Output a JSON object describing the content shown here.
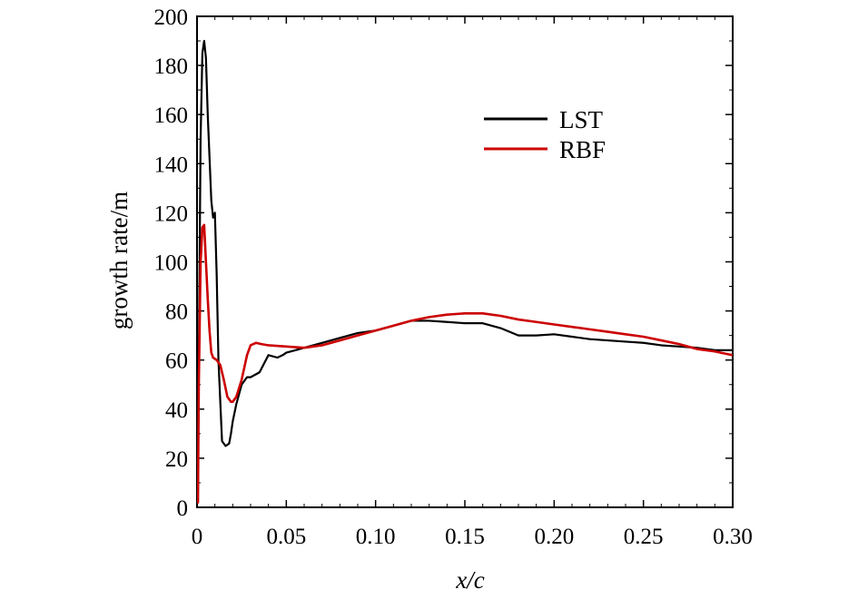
{
  "chart_data": {
    "type": "line",
    "xlabel": "x/c",
    "ylabel": "growth rate/m",
    "xlim": [
      0,
      0.3
    ],
    "ylim": [
      0,
      200
    ],
    "xticks": [
      0,
      0.05,
      0.1,
      0.15,
      0.2,
      0.25,
      0.3
    ],
    "xtick_labels": [
      "0",
      "0.05",
      "0.10",
      "0.15",
      "0.20",
      "0.25",
      "0.30"
    ],
    "yticks": [
      0,
      20,
      40,
      60,
      80,
      100,
      120,
      140,
      160,
      180,
      200
    ],
    "ytick_labels": [
      "0",
      "20",
      "40",
      "60",
      "80",
      "100",
      "120",
      "140",
      "160",
      "180",
      "200"
    ],
    "grid": false,
    "legend_position": "upper-right",
    "series": [
      {
        "name": "LST",
        "color": "#000000",
        "x": [
          0.0005,
          0.001,
          0.002,
          0.003,
          0.004,
          0.005,
          0.006,
          0.008,
          0.009,
          0.01,
          0.011,
          0.012,
          0.014,
          0.016,
          0.018,
          0.019,
          0.02,
          0.022,
          0.025,
          0.028,
          0.03,
          0.035,
          0.04,
          0.045,
          0.048,
          0.05,
          0.055,
          0.06,
          0.07,
          0.08,
          0.09,
          0.1,
          0.11,
          0.12,
          0.13,
          0.14,
          0.15,
          0.16,
          0.17,
          0.18,
          0.19,
          0.2,
          0.21,
          0.22,
          0.23,
          0.24,
          0.25,
          0.26,
          0.27,
          0.28,
          0.29,
          0.3
        ],
        "y": [
          2,
          60,
          150,
          185,
          190,
          183,
          160,
          125,
          118,
          120,
          95,
          60,
          27,
          25,
          26,
          30,
          35,
          42,
          50,
          53,
          53,
          55,
          62,
          61,
          62,
          63,
          64,
          65,
          67,
          69,
          71,
          72,
          74,
          76,
          76,
          75.5,
          75,
          75,
          73,
          70,
          70,
          70.5,
          69.5,
          68.5,
          68,
          67.5,
          67,
          66,
          65.5,
          65,
          64,
          64
        ]
      },
      {
        "name": "RBF",
        "color": "#cc0000",
        "x": [
          0.0005,
          0.001,
          0.002,
          0.003,
          0.004,
          0.005,
          0.006,
          0.007,
          0.008,
          0.009,
          0.011,
          0.013,
          0.015,
          0.017,
          0.019,
          0.02,
          0.022,
          0.025,
          0.028,
          0.03,
          0.033,
          0.036,
          0.04,
          0.05,
          0.06,
          0.07,
          0.08,
          0.09,
          0.1,
          0.11,
          0.12,
          0.13,
          0.14,
          0.15,
          0.16,
          0.17,
          0.18,
          0.19,
          0.2,
          0.21,
          0.22,
          0.23,
          0.24,
          0.25,
          0.26,
          0.27,
          0.28,
          0.29,
          0.3
        ],
        "y": [
          2,
          50,
          100,
          114,
          115,
          100,
          85,
          72,
          63,
          61,
          60,
          58,
          52,
          45,
          43,
          43,
          45,
          52,
          62,
          66,
          67,
          66.5,
          66,
          65.5,
          65,
          66,
          68,
          70,
          72,
          74,
          76,
          77.5,
          78.5,
          79,
          79,
          78,
          76.5,
          75.5,
          74.5,
          73.5,
          72.5,
          71.5,
          70.5,
          69.5,
          68,
          66.5,
          64.5,
          63.5,
          62
        ]
      }
    ]
  }
}
